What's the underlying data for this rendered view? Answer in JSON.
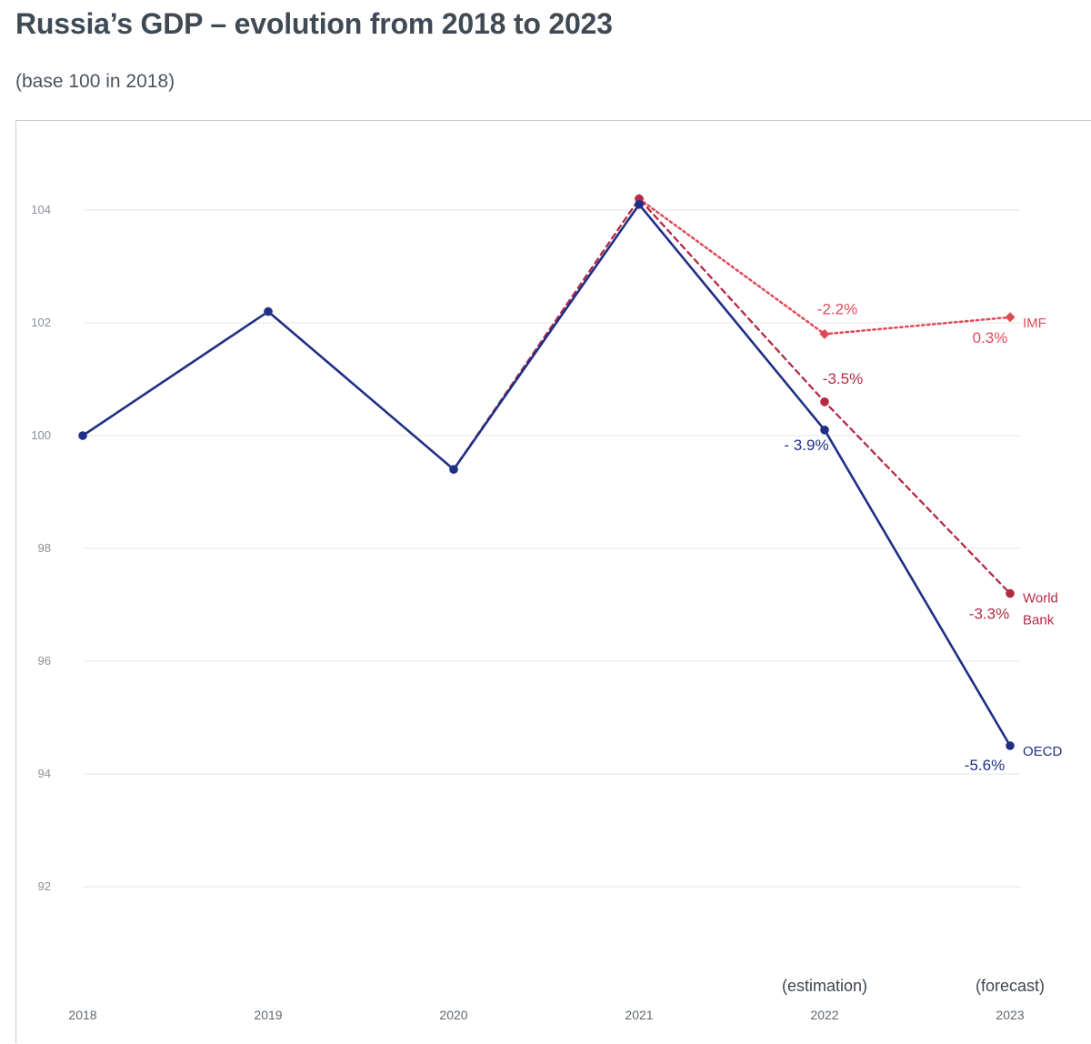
{
  "header": {
    "title": "Russia’s GDP – evolution from 2018 to 2023",
    "subtitle": "(base 100 in 2018)"
  },
  "chart_data": {
    "type": "line",
    "categories": [
      "2018",
      "2019",
      "2020",
      "2021",
      "2022",
      "2023"
    ],
    "category_notes": [
      "",
      "",
      "",
      "",
      "(estimation)",
      "(forecast)"
    ],
    "y_ticks": [
      92,
      94,
      96,
      98,
      100,
      102,
      104
    ],
    "ylim": [
      90.2,
      105.6
    ],
    "grid": "horizontal",
    "series": [
      {
        "name": "OECD",
        "color": "#1f2f86",
        "style": "solid",
        "marker": "circle",
        "x": [
          "2018",
          "2019",
          "2020",
          "2021",
          "2022",
          "2023"
        ],
        "values": [
          100,
          102.2,
          99.4,
          104.1,
          100.1,
          94.5
        ],
        "labels": [
          "",
          "",
          "",
          "",
          "- 3.9%",
          "-5.6%"
        ]
      },
      {
        "name": "World Bank",
        "name_lines": [
          "World",
          "Bank"
        ],
        "color": "#b52a44",
        "style": "dashed",
        "marker": "circle",
        "x": [
          "2020",
          "2021",
          "2022",
          "2023"
        ],
        "values": [
          99.4,
          104.2,
          100.6,
          97.2
        ],
        "labels": [
          "",
          "",
          "-3.5%",
          "-3.3%"
        ]
      },
      {
        "name": "IMF",
        "color": "#df4a57",
        "style": "dotted",
        "marker": "diamond",
        "x": [
          "2021",
          "2022",
          "2023"
        ],
        "values": [
          104.2,
          101.8,
          102.1
        ],
        "labels": [
          "",
          "-2.2%",
          "0.3%"
        ]
      }
    ]
  }
}
